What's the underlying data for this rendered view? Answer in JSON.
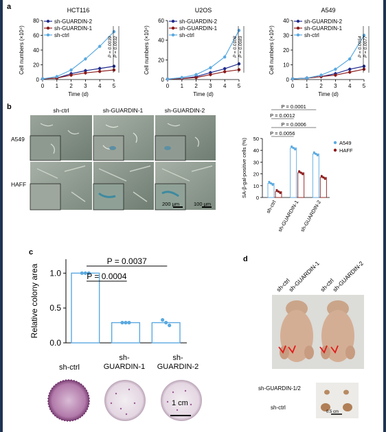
{
  "panel_letters": {
    "a": "a",
    "b": "b",
    "c": "c",
    "d": "d"
  },
  "colors": {
    "sh_guardin_2": "#1f2a8c",
    "sh_guardin_1": "#8c1a1a",
    "sh_ctrl": "#5aa9e0",
    "frame": "#1e3454"
  },
  "panel_b": {
    "col_labels": [
      "sh-ctrl",
      "sh-GUARDIN-1",
      "sh-GUARDIN-2"
    ],
    "row_labels": [
      "A549",
      "HAFF"
    ],
    "scale_200": "200 μm",
    "scale_100": "100 μm"
  },
  "panel_d": {
    "col_labels": [
      "sh-ctrl",
      "sh-GUARDIN-1",
      "sh-ctrl",
      "sh-GUARDIN-2"
    ],
    "tumor_label_top": "sh-GUARDIN-1/2",
    "tumor_label_bottom": "sh-ctrl",
    "scale": "0.5 cm"
  },
  "panel_c_images": {
    "labels": [
      "sh-ctrl",
      "sh-\nGUARDIN-1",
      "sh-\nGUARDIN-2"
    ],
    "scale": "1 cm"
  },
  "chart_data": [
    {
      "type": "line",
      "title": "HCT116",
      "xlabel": "Time (d)",
      "ylabel": "Cell numbers (×10⁴)",
      "x": [
        0,
        1,
        2,
        3,
        4,
        5
      ],
      "xlim": [
        0,
        5
      ],
      "ylim": [
        0,
        80
      ],
      "yticks": [
        0,
        20,
        40,
        60,
        80
      ],
      "series": [
        {
          "name": "sh-GUARDIN-2",
          "color": "#1f2a8c",
          "values": [
            1,
            2,
            8,
            12,
            15,
            18
          ]
        },
        {
          "name": "sh-GUARDIN-1",
          "color": "#8c1a1a",
          "values": [
            1,
            2,
            6,
            9,
            11,
            13
          ]
        },
        {
          "name": "sh-ctrl",
          "color": "#5aa9e0",
          "values": [
            1,
            4,
            13,
            28,
            45,
            65
          ]
        }
      ],
      "annotations": [
        "P = 0.0039",
        "P = 0.0032"
      ]
    },
    {
      "type": "line",
      "title": "U2OS",
      "xlabel": "Time (d)",
      "ylabel": "Cell numbers (×10⁴)",
      "x": [
        0,
        1,
        2,
        3,
        4,
        5
      ],
      "xlim": [
        0,
        5
      ],
      "ylim": [
        0,
        60
      ],
      "yticks": [
        0,
        20,
        40,
        60
      ],
      "series": [
        {
          "name": "sh-GUARDIN-2",
          "color": "#1f2a8c",
          "values": [
            0.5,
            1,
            3,
            7,
            11,
            16
          ]
        },
        {
          "name": "sh-GUARDIN-1",
          "color": "#8c1a1a",
          "values": [
            0.5,
            1,
            2,
            5,
            8,
            10
          ]
        },
        {
          "name": "sh-ctrl",
          "color": "#5aa9e0",
          "values": [
            0.5,
            2,
            5,
            12,
            23,
            50
          ]
        }
      ],
      "annotations": [
        "P = 0.0108",
        "P = 0.0083"
      ]
    },
    {
      "type": "line",
      "title": "A549",
      "xlabel": "Time (d)",
      "ylabel": "Cell numbers (×10⁴)",
      "x": [
        0,
        1,
        2,
        3,
        4,
        5
      ],
      "xlim": [
        0,
        5
      ],
      "ylim": [
        0,
        40
      ],
      "yticks": [
        0,
        10,
        20,
        30,
        40
      ],
      "series": [
        {
          "name": "sh-GUARDIN-2",
          "color": "#1f2a8c",
          "values": [
            0.5,
            1,
            2,
            4,
            7,
            9
          ]
        },
        {
          "name": "sh-GUARDIN-1",
          "color": "#8c1a1a",
          "values": [
            0.5,
            1,
            2,
            3,
            5,
            7
          ]
        },
        {
          "name": "sh-ctrl",
          "color": "#5aa9e0",
          "values": [
            0.5,
            1,
            3,
            7,
            14,
            30
          ]
        }
      ],
      "annotations": [
        "P = 0.0054",
        "P = 0.0077"
      ]
    },
    {
      "type": "bar",
      "ylabel": "SA-β-gal-positive cells (%)",
      "categories": [
        "sh-ctrl",
        "sh-GUARDIN-1",
        "sh-GUARDIN-2"
      ],
      "ylim": [
        0,
        50
      ],
      "yticks": [
        0,
        10,
        20,
        30,
        40,
        50
      ],
      "series": [
        {
          "name": "A549",
          "color": "#5aa9e0",
          "values": [
            12,
            42,
            37
          ]
        },
        {
          "name": "HAFF",
          "color": "#8c1a1a",
          "values": [
            5,
            21,
            17
          ]
        }
      ],
      "annotations": [
        "P = 0.0001",
        "P = 0.0012",
        "P = 0.0006",
        "P = 0.0056"
      ]
    },
    {
      "type": "bar",
      "ylabel": "Relative colony area",
      "categories": [
        "sh-ctrl",
        "sh-GUARDIN-1",
        "sh-GUARDIN-2"
      ],
      "ylim": [
        0,
        1.2
      ],
      "yticks": [
        "0.0",
        "0.5",
        "1.0"
      ],
      "values": [
        1.0,
        0.29,
        0.29
      ],
      "annotations": [
        "P = 0.0037",
        "P = 0.0004"
      ]
    }
  ]
}
